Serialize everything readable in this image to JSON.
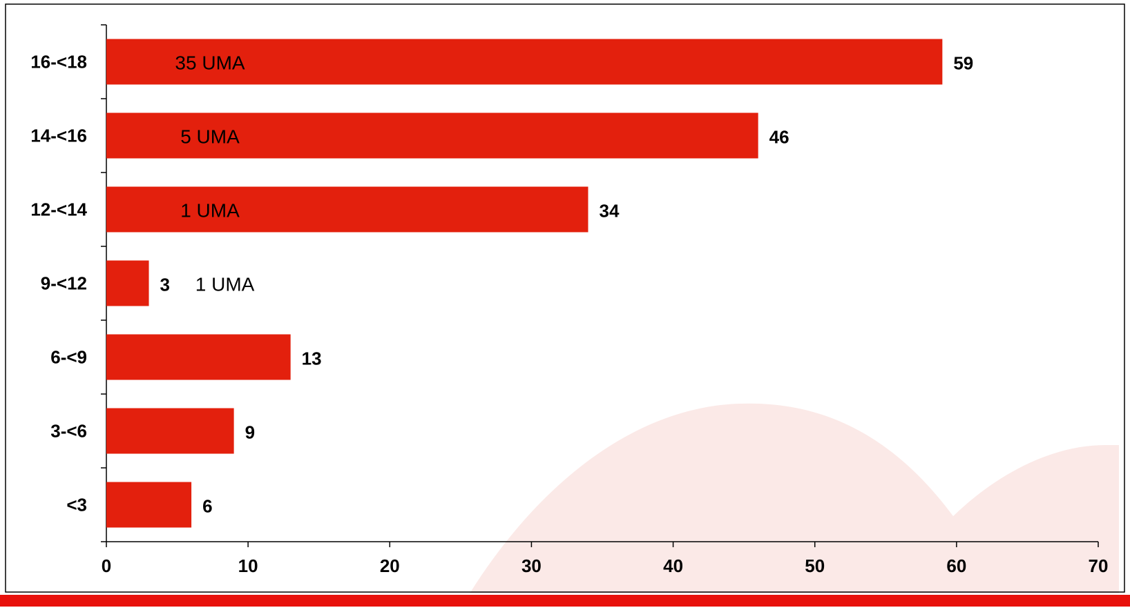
{
  "colors": {
    "bar": "#e3200d",
    "frame": "#000000",
    "bottom_stripe": "#e8110c",
    "watermark": "#fbe9e7",
    "text": "#000000"
  },
  "chart_data": {
    "type": "bar",
    "orientation": "horizontal",
    "categories": [
      "16-<18",
      "14-<16",
      "12-<14",
      "9-<12",
      "6-<9",
      "3-<6",
      "<3"
    ],
    "values": [
      59,
      46,
      34,
      3,
      13,
      9,
      6
    ],
    "value_labels": [
      "59",
      "46",
      "34",
      "3",
      "13",
      "9",
      "6"
    ],
    "annotations": [
      "35 UMA",
      "5 UMA",
      "1 UMA",
      "1 UMA",
      "",
      "",
      ""
    ],
    "title": "",
    "xlabel": "",
    "ylabel": "",
    "xlim": [
      0,
      70
    ],
    "xticks": [
      0,
      10,
      20,
      30,
      40,
      50,
      60,
      70
    ],
    "xtick_labels": [
      "0",
      "10",
      "20",
      "30",
      "40",
      "50",
      "60",
      "70"
    ],
    "grid": false,
    "legend": "none"
  }
}
